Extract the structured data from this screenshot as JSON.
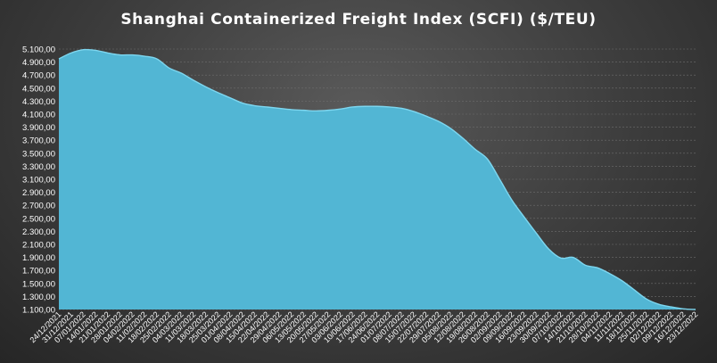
{
  "chart_data": {
    "type": "area",
    "title": "Shanghai  Containerized Freight Index  (SCFI) ($/TEU)",
    "xlabel": "",
    "ylabel": "",
    "ylim": [
      1100,
      5100
    ],
    "yticks": [
      1100,
      1300,
      1500,
      1700,
      1900,
      2100,
      2300,
      2500,
      2700,
      2900,
      3100,
      3300,
      3500,
      3700,
      3900,
      4100,
      4300,
      4500,
      4700,
      4900,
      5100
    ],
    "ytick_labels": [
      "1.100,00",
      "1.300,00",
      "1.500,00",
      "1.700,00",
      "1.900,00",
      "2.100,00",
      "2.300,00",
      "2.500,00",
      "2.700,00",
      "2.900,00",
      "3.100,00",
      "3.300,00",
      "3.500,00",
      "3.700,00",
      "3.900,00",
      "4.100,00",
      "4.300,00",
      "4.500,00",
      "4.700,00",
      "4.900,00",
      "5.100,00"
    ],
    "grid": true,
    "legend": "none",
    "colors": {
      "fill": "#52b6d4",
      "line": "#7dd6ef"
    },
    "categories": [
      "24/12/2021",
      "31/12/2021",
      "07/01/2022",
      "14/01/2022",
      "21/01/2022",
      "28/01/2022",
      "04/02/2022",
      "11/02/2022",
      "18/02/2022",
      "25/02/2022",
      "04/03/2022",
      "11/03/2022",
      "18/03/2022",
      "25/03/2022",
      "01/04/2022",
      "08/04/2022",
      "15/04/2022",
      "22/04/2022",
      "29/04/2022",
      "06/05/2022",
      "13/05/2022",
      "20/05/2022",
      "27/05/2022",
      "03/06/2022",
      "10/06/2022",
      "17/06/2022",
      "24/06/2022",
      "01/07/2022",
      "08/07/2022",
      "15/07/2022",
      "22/07/2022",
      "29/07/2022",
      "05/08/2022",
      "12/08/2022",
      "19/08/2022",
      "26/08/2022",
      "02/09/2022",
      "09/09/2022",
      "16/09/2022",
      "23/09/2022",
      "30/09/2022",
      "07/10/2022",
      "14/10/2022",
      "21/10/2022",
      "28/10/2022",
      "04/11/2022",
      "11/11/2022",
      "18/11/2022",
      "25/11/2022",
      "02/12/2022",
      "09/12/2022",
      "16/12/2022",
      "23/12/2022"
    ],
    "series": [
      {
        "values": [
          4950,
          5040,
          5090,
          5080,
          5040,
          5010,
          5010,
          4990,
          4950,
          4810,
          4730,
          4620,
          4520,
          4430,
          4350,
          4270,
          4230,
          4210,
          4190,
          4170,
          4160,
          4150,
          4160,
          4180,
          4210,
          4220,
          4220,
          4210,
          4190,
          4140,
          4070,
          3990,
          3880,
          3730,
          3560,
          3410,
          3100,
          2780,
          2520,
          2270,
          2030,
          1890,
          1900,
          1780,
          1740,
          1650,
          1540,
          1400,
          1260,
          1180,
          1140,
          1110,
          1100
        ]
      }
    ]
  }
}
